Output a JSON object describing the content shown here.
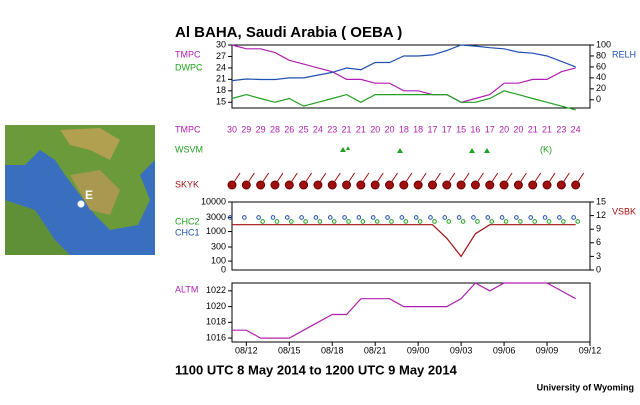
{
  "title": "Al BAHA, Saudi Arabia ( OEBA )",
  "time_range": "1100 UTC 8 May 2014 to 1200 UTC 9 May 2014",
  "credit": "University of Wyoming",
  "map": {
    "label": "E"
  },
  "rows": {
    "temperature": "TMPC",
    "weather": "WSVM",
    "sky": "SKYK"
  },
  "chart_data": [
    {
      "type": "line",
      "x": [
        0,
        1,
        2,
        3,
        4,
        5,
        6,
        7,
        8,
        9,
        10,
        11,
        12,
        13,
        14,
        15,
        16,
        17,
        18,
        19,
        20,
        21,
        22,
        23,
        24
      ],
      "xlim": [
        0,
        25
      ],
      "xticks": [
        {
          "value": 1,
          "label": "08/12"
        },
        {
          "value": 4,
          "label": "08/15"
        },
        {
          "value": 7,
          "label": "08/18"
        },
        {
          "value": 10,
          "label": "08/21"
        },
        {
          "value": 13,
          "label": "09/00"
        },
        {
          "value": 16,
          "label": "09/03"
        },
        {
          "value": 19,
          "label": "09/06"
        },
        {
          "value": 22,
          "label": "09/09"
        },
        {
          "value": 25,
          "label": "09/12"
        }
      ],
      "ylim": [
        13.5,
        30
      ],
      "yticks": [
        15,
        18,
        21,
        24,
        27,
        30
      ],
      "y2lim": [
        -15,
        100
      ],
      "y2ticks": [
        0,
        20,
        40,
        60,
        80,
        100
      ],
      "series": [
        {
          "name": "TMPC",
          "color": "#b020b0",
          "values": [
            30,
            29,
            29,
            28,
            26,
            25,
            24,
            23,
            21,
            21,
            20,
            20,
            18,
            18,
            17,
            17,
            15,
            16,
            17,
            20,
            20,
            21,
            21,
            23,
            24
          ]
        },
        {
          "name": "DWPC",
          "color": "#20a020",
          "values": [
            16,
            17,
            16,
            15,
            16,
            14,
            15,
            16,
            17,
            15,
            17,
            17,
            17,
            17,
            17,
            17,
            15,
            15,
            16,
            18,
            17,
            16,
            15,
            14,
            13
          ]
        },
        {
          "name": "RELH",
          "color": "#2050b0",
          "axis": "y2",
          "values": [
            35,
            38,
            37,
            37,
            40,
            40,
            45,
            50,
            58,
            55,
            68,
            68,
            80,
            80,
            82,
            90,
            100,
            98,
            95,
            93,
            87,
            85,
            80,
            70,
            60
          ]
        }
      ]
    },
    {
      "type": "line",
      "log": true,
      "ylim": [
        50,
        10000
      ],
      "yticks": [
        100,
        300,
        1000,
        3000,
        10000
      ],
      "floor_label": "0",
      "y2lim": [
        0,
        15
      ],
      "y2ticks": [
        0,
        3,
        6,
        9,
        12,
        15
      ],
      "series": [
        {
          "name": "CHC2",
          "color": "#20a020",
          "values": [
            null,
            null,
            3000,
            3000,
            3000,
            3000,
            3000,
            3000,
            3000,
            3000,
            3000,
            3000,
            3000,
            3000,
            3000,
            3000,
            3000,
            3000,
            3000,
            3000,
            3000,
            3000,
            3000,
            3000,
            3000
          ]
        },
        {
          "name": "CHC1",
          "color": "#2050b0",
          "values": [
            3000,
            3000,
            3000,
            3000,
            3000,
            3000,
            3000,
            3000,
            3000,
            3000,
            3000,
            3000,
            3000,
            3000,
            3000,
            3000,
            3000,
            3000,
            3000,
            3000,
            3000,
            3000,
            3000,
            3000,
            3000
          ]
        },
        {
          "name": "VSBK",
          "color": "#a01010",
          "axis": "y2",
          "values": [
            10,
            10,
            10,
            10,
            10,
            10,
            10,
            10,
            10,
            10,
            10,
            10,
            10,
            10,
            10,
            7,
            3,
            8,
            10,
            10,
            10,
            10,
            10,
            10,
            10
          ]
        }
      ]
    },
    {
      "type": "line",
      "ylim": [
        1015.5,
        1023
      ],
      "yticks": [
        1016,
        1018,
        1020,
        1022
      ],
      "series": [
        {
          "name": "ALTM",
          "color": "#b020b0",
          "values": [
            1017,
            1017,
            1016,
            1016,
            1016,
            1017,
            1018,
            1019,
            1019,
            1021,
            1021,
            1021,
            1020,
            1020,
            1020,
            1020,
            1021,
            1023,
            1022,
            1023,
            1023,
            1023,
            1023,
            1022,
            1021
          ]
        }
      ]
    }
  ]
}
